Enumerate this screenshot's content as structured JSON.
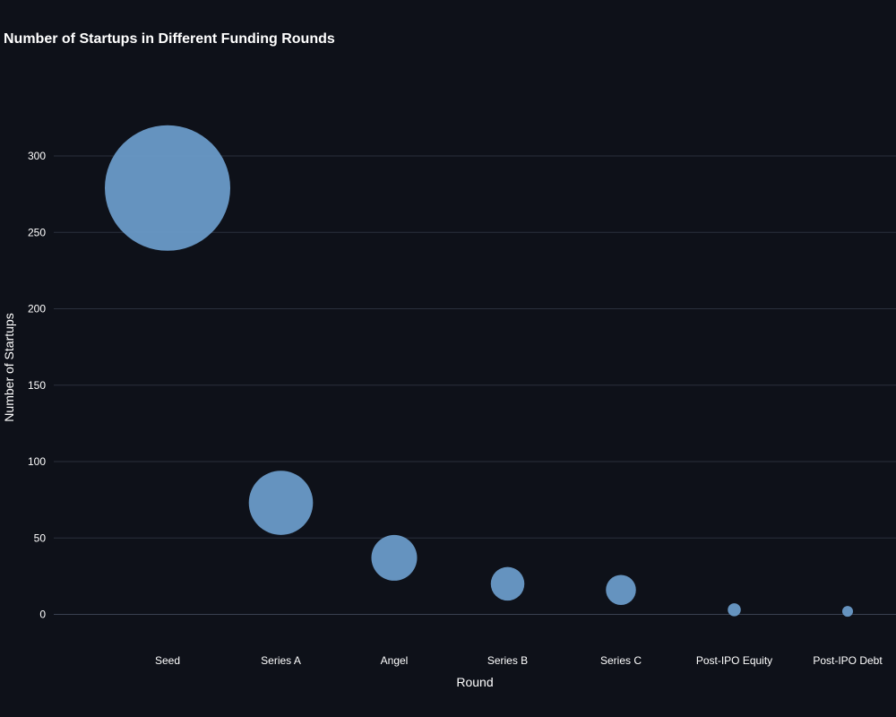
{
  "chart_data": {
    "type": "scatter",
    "title": "Number of Startups in Different Funding Rounds",
    "xlabel": "Round",
    "ylabel": "Number of Startups",
    "categories": [
      "Seed",
      "Series A",
      "Angel",
      "Series B",
      "Series C",
      "Post-IPO Equity",
      "Post-IPO Debt"
    ],
    "values": [
      279,
      73,
      37,
      20,
      16,
      3,
      2
    ],
    "ylim": [
      -7,
      335
    ],
    "yticks": [
      0,
      50,
      100,
      150,
      200,
      250,
      300
    ],
    "grid": true,
    "legend": "none",
    "marker_color": "#6a9bc8"
  }
}
